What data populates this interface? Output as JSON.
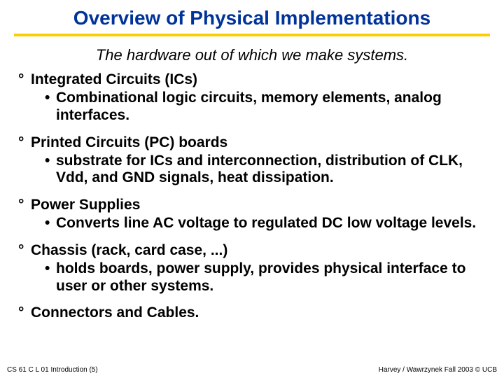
{
  "title": {
    "text": "Overview of Physical Implementations",
    "color": "#003399",
    "fontsize": 28,
    "underline_color": "#ffcc00",
    "underline_height": 4
  },
  "subtitle": {
    "text": "The hardware out of which we make systems.",
    "fontsize": 22,
    "color": "#000000"
  },
  "list": {
    "heading_fontsize": 21,
    "sub_fontsize": 21,
    "color": "#000000",
    "degree_marker": "°",
    "bullet_marker": "•",
    "items": [
      {
        "heading": "Integrated Circuits (ICs)",
        "sub": "Combinational logic circuits, memory elements, analog interfaces."
      },
      {
        "heading": "Printed Circuits (PC) boards",
        "sub": "substrate for ICs and interconnection, distribution of CLK, Vdd, and GND signals, heat dissipation."
      },
      {
        "heading": "Power Supplies",
        "sub": "Converts line AC voltage to regulated DC low voltage levels."
      },
      {
        "heading": "Chassis (rack, card case, ...)",
        "sub": "holds boards, power supply, provides physical interface to user or other systems."
      },
      {
        "heading": "Connectors and Cables.",
        "sub": null
      }
    ]
  },
  "footer": {
    "left": "CS 61 C L 01 Introduction (5)",
    "right": "Harvey / Wawrzynek  Fall 2003 © UCB",
    "fontsize": 10,
    "color": "#000000"
  }
}
